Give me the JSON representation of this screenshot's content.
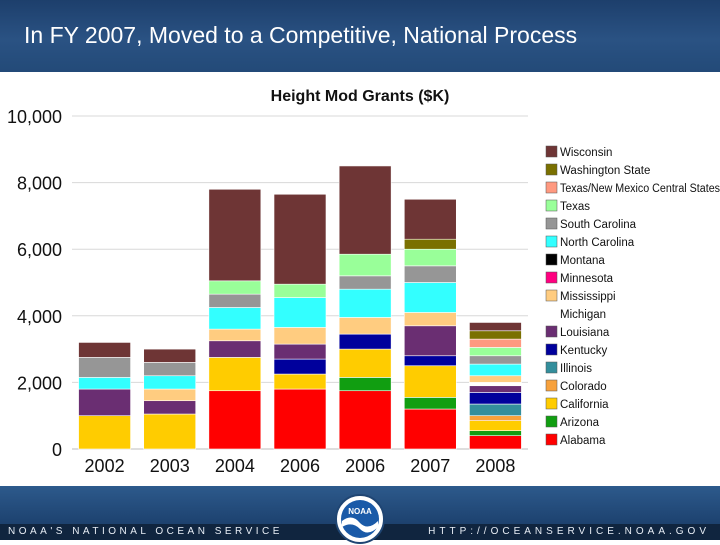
{
  "header": {
    "title": "In FY 2007, Moved to a Competitive, National Process"
  },
  "footer": {
    "left_text": "NOAA'S NATIONAL OCEAN SERVICE",
    "right_text": "HTTP://OCEANSERVICE.NOAA.GOV",
    "logo_text": "NOAA"
  },
  "chart_data": {
    "type": "bar",
    "stacked": true,
    "title": "Height Mod Grants ($K)",
    "xlabel": "",
    "ylabel": "",
    "ylim": [
      0,
      10000
    ],
    "yticks": [
      0,
      2000,
      4000,
      6000,
      8000,
      10000
    ],
    "ytick_labels": [
      "0",
      "2,000",
      "4,000",
      "6,000",
      "8,000",
      "10,000"
    ],
    "grid": true,
    "legend_position": "right",
    "categories": [
      "2002",
      "2003",
      "2004",
      "2006",
      "2006",
      "2007",
      "2008"
    ],
    "series": [
      {
        "name": "Alabama",
        "color": "#ff0000",
        "values": [
          0,
          0,
          1750,
          1800,
          1750,
          1200,
          400
        ]
      },
      {
        "name": "Arizona",
        "color": "#119e11",
        "values": [
          0,
          0,
          0,
          0,
          400,
          350,
          150
        ]
      },
      {
        "name": "California",
        "color": "#ffcc00",
        "values": [
          1000,
          1050,
          1000,
          450,
          850,
          950,
          300
        ]
      },
      {
        "name": "Colorado",
        "color": "#f7a13c",
        "values": [
          0,
          0,
          0,
          0,
          0,
          0,
          150
        ]
      },
      {
        "name": "Illinois",
        "color": "#338e9c",
        "values": [
          0,
          0,
          0,
          0,
          0,
          0,
          350
        ]
      },
      {
        "name": "Kentucky",
        "color": "#00009c",
        "values": [
          0,
          0,
          0,
          450,
          450,
          300,
          350
        ]
      },
      {
        "name": "Louisiana",
        "color": "#6a2e72",
        "values": [
          800,
          400,
          500,
          450,
          0,
          900,
          200
        ]
      },
      {
        "name": "Michigan",
        "color": "#ffffff",
        "values": [
          0,
          0,
          0,
          0,
          0,
          0,
          100
        ]
      },
      {
        "name": "Mississippi",
        "color": "#ffcc80",
        "values": [
          0,
          350,
          350,
          500,
          500,
          400,
          200
        ]
      },
      {
        "name": "Minnesota",
        "color": "#ff0080",
        "values": [
          0,
          0,
          0,
          0,
          0,
          0,
          0
        ]
      },
      {
        "name": "Montana",
        "color": "#000000",
        "values": [
          0,
          0,
          0,
          0,
          0,
          0,
          0
        ]
      },
      {
        "name": "North Carolina",
        "color": "#33ffff",
        "values": [
          350,
          400,
          650,
          900,
          850,
          900,
          350
        ]
      },
      {
        "name": "South Carolina",
        "color": "#969696",
        "values": [
          600,
          400,
          400,
          0,
          400,
          500,
          250
        ]
      },
      {
        "name": "Texas",
        "color": "#99ff99",
        "values": [
          0,
          0,
          400,
          400,
          650,
          500,
          250
        ]
      },
      {
        "name": "Texas/New Mexico Central States",
        "color": "#ff9980",
        "values": [
          0,
          0,
          0,
          0,
          0,
          0,
          250
        ]
      },
      {
        "name": "Washington State",
        "color": "#7a7000",
        "values": [
          0,
          0,
          0,
          0,
          0,
          300,
          250
        ]
      },
      {
        "name": "Wisconsin",
        "color": "#6e3535",
        "values": [
          450,
          400,
          2750,
          2700,
          2650,
          1200,
          250
        ]
      }
    ]
  }
}
